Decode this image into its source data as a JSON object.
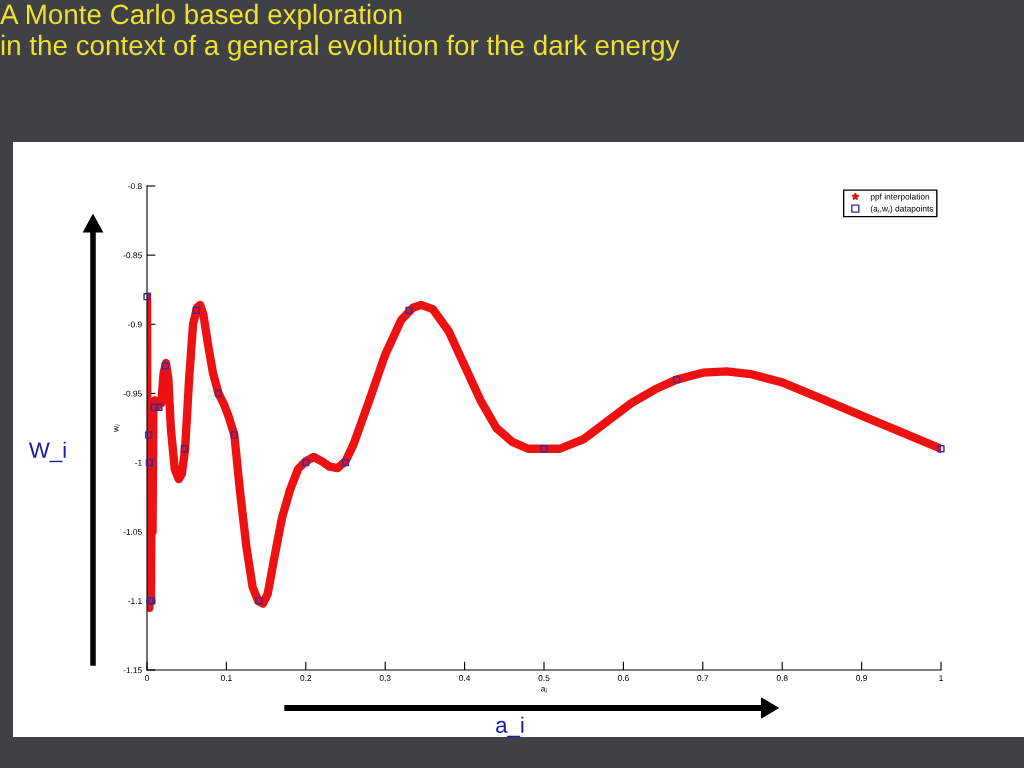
{
  "chart_data": {
    "type": "line",
    "title": "A Monte Carlo based exploration\nin the context of a general evolution for the dark energy",
    "xlabel": "a$_{i}$",
    "ylabel": "w$_{i}$",
    "annotations": [
      "W_i",
      "a_i"
    ],
    "xlim": [
      0,
      1
    ],
    "xticks": [
      0,
      0.1,
      0.2,
      0.3,
      0.4,
      0.5,
      0.6,
      0.7,
      0.8,
      0.9,
      1
    ],
    "ylim": [
      -1.15,
      -0.8
    ],
    "yticks": [
      -1.15,
      -1.1,
      -1.05,
      -1,
      -0.95,
      -0.9,
      -0.85,
      -0.8
    ],
    "grid": false,
    "legend": "top right",
    "series": [
      {
        "name": "ppf interpolation",
        "marker": "star",
        "color": "#ee1111",
        "x": [
          0,
          0.001,
          0.002,
          0.003,
          0.004,
          0.005,
          0.006,
          0.007,
          0.008,
          0.01,
          0.012,
          0.015,
          0.018,
          0.021,
          0.024,
          0.027,
          0.03,
          0.035,
          0.04,
          0.044,
          0.048,
          0.053,
          0.058,
          0.063,
          0.067,
          0.071,
          0.077,
          0.083,
          0.09,
          0.097,
          0.103,
          0.11,
          0.117,
          0.125,
          0.133,
          0.14,
          0.146,
          0.152,
          0.16,
          0.17,
          0.18,
          0.19,
          0.2,
          0.21,
          0.22,
          0.23,
          0.24,
          0.25,
          0.26,
          0.28,
          0.3,
          0.32,
          0.335,
          0.345,
          0.36,
          0.38,
          0.4,
          0.42,
          0.44,
          0.46,
          0.48,
          0.5,
          0.52,
          0.55,
          0.58,
          0.61,
          0.64,
          0.667,
          0.7,
          0.73,
          0.76,
          0.8,
          0.85,
          0.9,
          0.95,
          1
        ],
        "values": [
          -0.88,
          -1.1,
          -0.98,
          -1.105,
          -1.0,
          -1.1,
          -0.99,
          -1.05,
          -0.96,
          -0.955,
          -0.96,
          -0.958,
          -0.957,
          -0.935,
          -0.928,
          -0.94,
          -0.975,
          -1.005,
          -1.012,
          -1.008,
          -0.99,
          -0.94,
          -0.9,
          -0.888,
          -0.886,
          -0.893,
          -0.915,
          -0.935,
          -0.95,
          -0.958,
          -0.967,
          -0.98,
          -1.02,
          -1.06,
          -1.09,
          -1.1,
          -1.102,
          -1.095,
          -1.07,
          -1.04,
          -1.02,
          -1.005,
          -0.999,
          -0.996,
          -0.999,
          -1.003,
          -1.004,
          -0.999,
          -0.987,
          -0.955,
          -0.922,
          -0.897,
          -0.888,
          -0.886,
          -0.889,
          -0.905,
          -0.93,
          -0.955,
          -0.975,
          -0.985,
          -0.99,
          -0.99,
          -0.99,
          -0.983,
          -0.97,
          -0.957,
          -0.947,
          -0.94,
          -0.935,
          -0.934,
          -0.936,
          -0.942,
          -0.954,
          -0.966,
          -0.978,
          -0.99
        ]
      },
      {
        "name": "(a$_{i}$,w$_{i}$) datapoints",
        "type": "scatter",
        "marker": "square",
        "color": "#3a2a9a",
        "x": [
          0,
          0.002,
          0.003,
          0.004,
          0.006,
          0.009,
          0.015,
          0.023,
          0.047,
          0.062,
          0.09,
          0.11,
          0.141,
          0.2,
          0.25,
          0.33,
          0.5,
          0.667,
          1
        ],
        "values": [
          -0.88,
          -0.98,
          -1.0,
          -1.1,
          -1.1,
          -0.96,
          -0.96,
          -0.93,
          -0.99,
          -0.89,
          -0.95,
          -0.98,
          -1.1,
          -1.0,
          -1.0,
          -0.89,
          -0.99,
          -0.94,
          -0.99
        ]
      }
    ]
  }
}
